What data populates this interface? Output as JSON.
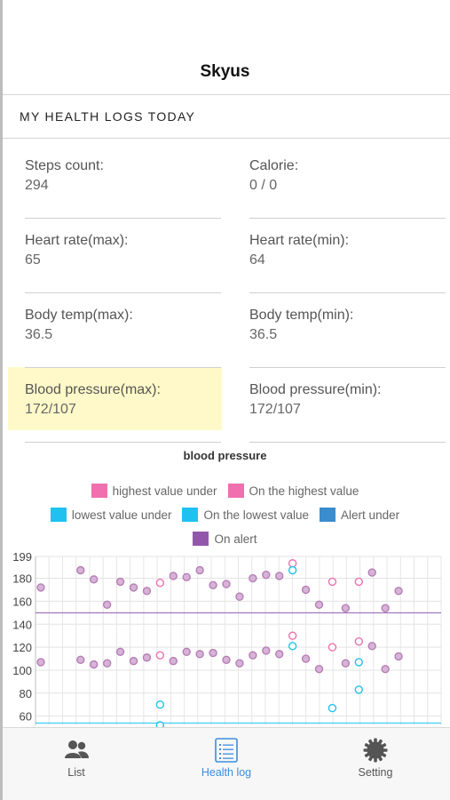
{
  "header": {
    "title": "Skyus"
  },
  "section": {
    "title": "MY HEALTH LOGS TODAY"
  },
  "metrics": {
    "steps": {
      "label": "Steps count:",
      "value": "294"
    },
    "calorie": {
      "label": "Calorie:",
      "value": "0 / 0"
    },
    "hr_max": {
      "label": "Heart rate(max):",
      "value": "65"
    },
    "hr_min": {
      "label": "Heart rate(min):",
      "value": "64"
    },
    "temp_max": {
      "label": "Body temp(max):",
      "value": "36.5"
    },
    "temp_min": {
      "label": "Body temp(min):",
      "value": "36.5"
    },
    "bp_max": {
      "label": "Blood pressure(max):",
      "value": "172/107"
    },
    "bp_min": {
      "label": "Blood pressure(min):",
      "value": "172/107"
    }
  },
  "colors": {
    "highest": "#f06fae",
    "lowest": "#1fc1f0",
    "alert_under": "#3a8ccc",
    "on_alert": "#9158aa",
    "accent": "#3b8ede"
  },
  "chart_data": {
    "type": "scatter",
    "title": "blood pressure",
    "legend": [
      {
        "name": "highest value under",
        "color": "#f06fae"
      },
      {
        "name": "On the highest value",
        "color": "#f06fae"
      },
      {
        "name": "lowest value under",
        "color": "#1fc1f0"
      },
      {
        "name": "On the lowest value",
        "color": "#1fc1f0"
      },
      {
        "name": "Alert under",
        "color": "#3a8ccc"
      },
      {
        "name": "On alert",
        "color": "#9158aa"
      }
    ],
    "y_ticks": [
      199,
      180,
      160,
      140,
      120,
      100,
      80,
      60
    ],
    "ylim": [
      52,
      199
    ],
    "x_count": 31,
    "reference_lines": {
      "high": 150,
      "low": 54
    },
    "series": [
      {
        "name": "On alert",
        "color": "#9158aa",
        "points": [
          [
            0,
            172
          ],
          [
            0,
            107
          ],
          [
            3,
            187
          ],
          [
            3,
            109
          ],
          [
            4,
            179
          ],
          [
            4,
            105
          ],
          [
            5,
            157
          ],
          [
            5,
            106
          ],
          [
            6,
            177
          ],
          [
            6,
            116
          ],
          [
            7,
            172
          ],
          [
            7,
            108
          ],
          [
            8,
            169
          ],
          [
            8,
            111
          ],
          [
            10,
            182
          ],
          [
            10,
            108
          ],
          [
            11,
            181
          ],
          [
            11,
            116
          ],
          [
            12,
            187
          ],
          [
            12,
            114
          ],
          [
            13,
            174
          ],
          [
            13,
            115
          ],
          [
            14,
            175
          ],
          [
            14,
            109
          ],
          [
            15,
            164
          ],
          [
            15,
            106
          ],
          [
            16,
            180
          ],
          [
            16,
            113
          ],
          [
            17,
            183
          ],
          [
            17,
            117
          ],
          [
            18,
            182
          ],
          [
            18,
            114
          ],
          [
            20,
            170
          ],
          [
            20,
            110
          ],
          [
            21,
            157
          ],
          [
            21,
            101
          ],
          [
            23,
            154
          ],
          [
            23,
            106
          ],
          [
            25,
            185
          ],
          [
            25,
            121
          ],
          [
            26,
            154
          ],
          [
            26,
            101
          ],
          [
            27,
            169
          ],
          [
            27,
            112
          ]
        ]
      },
      {
        "name": "On the highest value",
        "color": "#f06fae",
        "points": [
          [
            9,
            176
          ],
          [
            9,
            113
          ],
          [
            19,
            193
          ],
          [
            19,
            130
          ],
          [
            22,
            177
          ],
          [
            22,
            120
          ],
          [
            24,
            177
          ],
          [
            24,
            125
          ]
        ]
      },
      {
        "name": "On the lowest value",
        "color": "#1fc1f0",
        "points": [
          [
            19,
            187
          ],
          [
            19,
            121
          ],
          [
            9,
            70
          ],
          [
            9,
            52
          ],
          [
            22,
            67
          ],
          [
            24,
            107
          ],
          [
            24,
            83
          ]
        ]
      }
    ]
  },
  "tabs": [
    {
      "label": "List",
      "icon": "people-icon"
    },
    {
      "label": "Health log",
      "icon": "health-log-icon"
    },
    {
      "label": "Setting",
      "icon": "gear-icon"
    }
  ]
}
